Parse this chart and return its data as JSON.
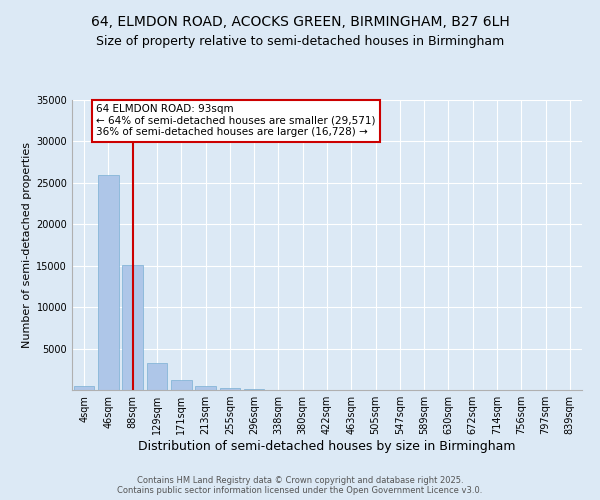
{
  "title": "64, ELMDON ROAD, ACOCKS GREEN, BIRMINGHAM, B27 6LH",
  "subtitle": "Size of property relative to semi-detached houses in Birmingham",
  "xlabel": "Distribution of semi-detached houses by size in Birmingham",
  "ylabel": "Number of semi-detached properties",
  "categories": [
    "4sqm",
    "46sqm",
    "88sqm",
    "129sqm",
    "171sqm",
    "213sqm",
    "255sqm",
    "296sqm",
    "338sqm",
    "380sqm",
    "422sqm",
    "463sqm",
    "505sqm",
    "547sqm",
    "589sqm",
    "630sqm",
    "672sqm",
    "714sqm",
    "756sqm",
    "797sqm",
    "839sqm"
  ],
  "values": [
    500,
    26000,
    15100,
    3200,
    1150,
    450,
    280,
    130,
    50,
    20,
    10,
    8,
    5,
    3,
    2,
    1,
    1,
    0,
    0,
    0,
    0
  ],
  "bar_color": "#aec6e8",
  "bar_edge_color": "#7aafd4",
  "vline_x": 2,
  "vline_color": "#cc0000",
  "annotation_text": "64 ELMDON ROAD: 93sqm\n← 64% of semi-detached houses are smaller (29,571)\n36% of semi-detached houses are larger (16,728) →",
  "annotation_box_color": "#ffffff",
  "annotation_border_color": "#cc0000",
  "ylim": [
    0,
    35000
  ],
  "yticks": [
    0,
    5000,
    10000,
    15000,
    20000,
    25000,
    30000,
    35000
  ],
  "background_color": "#dce9f5",
  "plot_bg_color": "#dce9f5",
  "footer_line1": "Contains HM Land Registry data © Crown copyright and database right 2025.",
  "footer_line2": "Contains public sector information licensed under the Open Government Licence v3.0.",
  "title_fontsize": 10,
  "subtitle_fontsize": 9,
  "tick_fontsize": 7,
  "ylabel_fontsize": 8,
  "xlabel_fontsize": 9,
  "annotation_fontsize": 7.5,
  "footer_fontsize": 6
}
